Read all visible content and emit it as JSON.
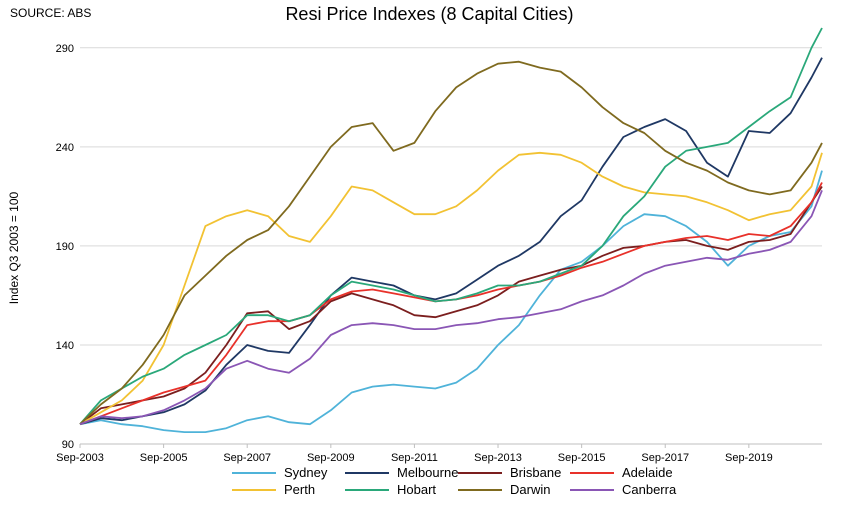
{
  "source": "SOURCE: ABS",
  "chart_data": {
    "type": "line",
    "title": "Resi Price Indexes (8 Capital Cities)",
    "xlabel": "",
    "ylabel": "Index Q3 2003 = 100",
    "ylim": [
      90,
      300
    ],
    "yticks": [
      90,
      140,
      190,
      240,
      290
    ],
    "xlim": [
      2003.5,
      2021.25
    ],
    "xticks": [
      {
        "x": 2003.5,
        "label": "Sep-2003"
      },
      {
        "x": 2005.5,
        "label": "Sep-2005"
      },
      {
        "x": 2007.5,
        "label": "Sep-2007"
      },
      {
        "x": 2009.5,
        "label": "Sep-2009"
      },
      {
        "x": 2011.5,
        "label": "Sep-2011"
      },
      {
        "x": 2013.5,
        "label": "Sep-2013"
      },
      {
        "x": 2015.5,
        "label": "Sep-2015"
      },
      {
        "x": 2017.5,
        "label": "Sep-2017"
      },
      {
        "x": 2019.5,
        "label": "Sep-2019"
      }
    ],
    "grid": "horizontal",
    "legend_position": "bottom",
    "series": [
      {
        "name": "Sydney",
        "color": "#4fb3d9",
        "x": [
          2003.5,
          2004.0,
          2004.5,
          2005.0,
          2005.5,
          2006.0,
          2006.5,
          2007.0,
          2007.5,
          2008.0,
          2008.5,
          2009.0,
          2009.5,
          2010.0,
          2010.5,
          2011.0,
          2011.5,
          2012.0,
          2012.5,
          2013.0,
          2013.5,
          2014.0,
          2014.5,
          2015.0,
          2015.5,
          2016.0,
          2016.5,
          2017.0,
          2017.5,
          2018.0,
          2018.5,
          2019.0,
          2019.5,
          2020.0,
          2020.5,
          2021.0,
          2021.25
        ],
        "y": [
          100,
          102,
          100,
          99,
          97,
          96,
          96,
          98,
          102,
          104,
          101,
          100,
          107,
          116,
          119,
          120,
          119,
          118,
          121,
          128,
          140,
          150,
          165,
          178,
          182,
          190,
          200,
          206,
          205,
          200,
          192,
          180,
          190,
          195,
          197,
          210,
          228
        ]
      },
      {
        "name": "Melbourne",
        "color": "#1f3864",
        "x": [
          2003.5,
          2004.0,
          2004.5,
          2005.0,
          2005.5,
          2006.0,
          2006.5,
          2007.0,
          2007.5,
          2008.0,
          2008.5,
          2009.0,
          2009.5,
          2010.0,
          2010.5,
          2011.0,
          2011.5,
          2012.0,
          2012.5,
          2013.0,
          2013.5,
          2014.0,
          2014.5,
          2015.0,
          2015.5,
          2016.0,
          2016.5,
          2017.0,
          2017.5,
          2018.0,
          2018.5,
          2019.0,
          2019.5,
          2020.0,
          2020.5,
          2021.0,
          2021.25
        ],
        "y": [
          100,
          103,
          102,
          104,
          106,
          110,
          117,
          130,
          140,
          137,
          136,
          150,
          165,
          174,
          172,
          170,
          165,
          163,
          166,
          173,
          180,
          185,
          192,
          205,
          213,
          230,
          245,
          250,
          254,
          248,
          232,
          225,
          248,
          247,
          257,
          275,
          285
        ]
      },
      {
        "name": "Brisbane",
        "color": "#7b1e1e",
        "x": [
          2003.5,
          2004.0,
          2004.5,
          2005.0,
          2005.5,
          2006.0,
          2006.5,
          2007.0,
          2007.5,
          2008.0,
          2008.5,
          2009.0,
          2009.5,
          2010.0,
          2010.5,
          2011.0,
          2011.5,
          2012.0,
          2012.5,
          2013.0,
          2013.5,
          2014.0,
          2014.5,
          2015.0,
          2015.5,
          2016.0,
          2016.5,
          2017.0,
          2017.5,
          2018.0,
          2018.5,
          2019.0,
          2019.5,
          2020.0,
          2020.5,
          2021.0,
          2021.25
        ],
        "y": [
          100,
          108,
          110,
          112,
          114,
          118,
          126,
          140,
          156,
          157,
          148,
          152,
          162,
          166,
          163,
          160,
          155,
          154,
          157,
          160,
          165,
          172,
          175,
          178,
          180,
          185,
          189,
          190,
          192,
          193,
          190,
          188,
          192,
          193,
          196,
          212,
          220
        ]
      },
      {
        "name": "Adelaide",
        "color": "#e8312a",
        "x": [
          2003.5,
          2004.0,
          2004.5,
          2005.0,
          2005.5,
          2006.0,
          2006.5,
          2007.0,
          2007.5,
          2008.0,
          2008.5,
          2009.0,
          2009.5,
          2010.0,
          2010.5,
          2011.0,
          2011.5,
          2012.0,
          2012.5,
          2013.0,
          2013.5,
          2014.0,
          2014.5,
          2015.0,
          2015.5,
          2016.0,
          2016.5,
          2017.0,
          2017.5,
          2018.0,
          2018.5,
          2019.0,
          2019.5,
          2020.0,
          2020.5,
          2021.0,
          2021.25
        ],
        "y": [
          100,
          104,
          108,
          112,
          116,
          119,
          122,
          135,
          150,
          152,
          152,
          155,
          163,
          167,
          168,
          166,
          164,
          162,
          163,
          165,
          168,
          170,
          172,
          175,
          179,
          182,
          186,
          190,
          192,
          194,
          195,
          193,
          196,
          195,
          200,
          212,
          222
        ]
      },
      {
        "name": "Perth",
        "color": "#f2c233",
        "x": [
          2003.5,
          2004.0,
          2004.5,
          2005.0,
          2005.5,
          2006.0,
          2006.5,
          2007.0,
          2007.5,
          2008.0,
          2008.5,
          2009.0,
          2009.5,
          2010.0,
          2010.5,
          2011.0,
          2011.5,
          2012.0,
          2012.5,
          2013.0,
          2013.5,
          2014.0,
          2014.5,
          2015.0,
          2015.5,
          2016.0,
          2016.5,
          2017.0,
          2017.5,
          2018.0,
          2018.5,
          2019.0,
          2019.5,
          2020.0,
          2020.5,
          2021.0,
          2021.25
        ],
        "y": [
          100,
          106,
          112,
          122,
          140,
          170,
          200,
          205,
          208,
          205,
          195,
          192,
          205,
          220,
          218,
          212,
          206,
          206,
          210,
          218,
          228,
          236,
          237,
          236,
          232,
          225,
          220,
          217,
          216,
          215,
          212,
          208,
          203,
          206,
          208,
          220,
          237
        ]
      },
      {
        "name": "Hobart",
        "color": "#2aa87a",
        "x": [
          2003.5,
          2004.0,
          2004.5,
          2005.0,
          2005.5,
          2006.0,
          2006.5,
          2007.0,
          2007.5,
          2008.0,
          2008.5,
          2009.0,
          2009.5,
          2010.0,
          2010.5,
          2011.0,
          2011.5,
          2012.0,
          2012.5,
          2013.0,
          2013.5,
          2014.0,
          2014.5,
          2015.0,
          2015.5,
          2016.0,
          2016.5,
          2017.0,
          2017.5,
          2018.0,
          2018.5,
          2019.0,
          2019.5,
          2020.0,
          2020.5,
          2021.0,
          2021.25
        ],
        "y": [
          100,
          112,
          118,
          124,
          128,
          135,
          140,
          145,
          155,
          155,
          152,
          155,
          165,
          172,
          170,
          168,
          165,
          162,
          163,
          166,
          170,
          170,
          172,
          176,
          180,
          190,
          205,
          215,
          230,
          238,
          240,
          242,
          250,
          258,
          265,
          290,
          300
        ]
      },
      {
        "name": "Darwin",
        "color": "#7f6a1f",
        "x": [
          2003.5,
          2004.0,
          2004.5,
          2005.0,
          2005.5,
          2006.0,
          2006.5,
          2007.0,
          2007.5,
          2008.0,
          2008.5,
          2009.0,
          2009.5,
          2010.0,
          2010.5,
          2011.0,
          2011.5,
          2012.0,
          2012.5,
          2013.0,
          2013.5,
          2014.0,
          2014.5,
          2015.0,
          2015.5,
          2016.0,
          2016.5,
          2017.0,
          2017.5,
          2018.0,
          2018.5,
          2019.0,
          2019.5,
          2020.0,
          2020.5,
          2021.0,
          2021.25
        ],
        "y": [
          100,
          110,
          118,
          130,
          145,
          165,
          175,
          185,
          193,
          198,
          210,
          225,
          240,
          250,
          252,
          238,
          242,
          258,
          270,
          277,
          282,
          283,
          280,
          278,
          270,
          260,
          252,
          247,
          238,
          232,
          228,
          222,
          218,
          216,
          218,
          232,
          242
        ]
      },
      {
        "name": "Canberra",
        "color": "#8a56b5",
        "x": [
          2003.5,
          2004.0,
          2004.5,
          2005.0,
          2005.5,
          2006.0,
          2006.5,
          2007.0,
          2007.5,
          2008.0,
          2008.5,
          2009.0,
          2009.5,
          2010.0,
          2010.5,
          2011.0,
          2011.5,
          2012.0,
          2012.5,
          2013.0,
          2013.5,
          2014.0,
          2014.5,
          2015.0,
          2015.5,
          2016.0,
          2016.5,
          2017.0,
          2017.5,
          2018.0,
          2018.5,
          2019.0,
          2019.5,
          2020.0,
          2020.5,
          2021.0,
          2021.25
        ],
        "y": [
          100,
          104,
          103,
          104,
          107,
          112,
          118,
          128,
          132,
          128,
          126,
          133,
          145,
          150,
          151,
          150,
          148,
          148,
          150,
          151,
          153,
          154,
          156,
          158,
          162,
          165,
          170,
          176,
          180,
          182,
          184,
          183,
          186,
          188,
          192,
          205,
          218
        ]
      }
    ]
  }
}
